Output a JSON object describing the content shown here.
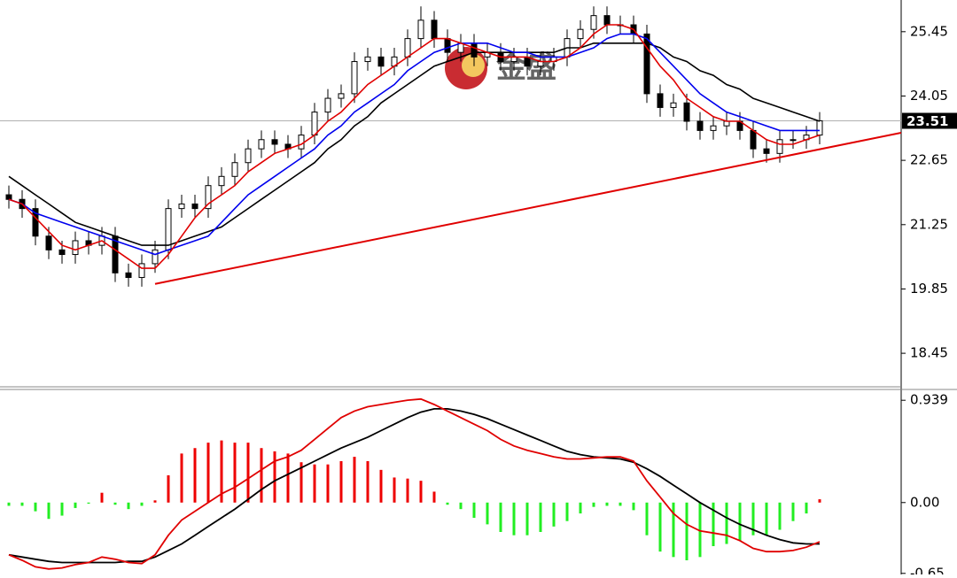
{
  "watermark": "金盛",
  "chart_data": [
    {
      "type": "candlestick",
      "open": [
        21.9,
        21.8,
        21.6,
        21.0,
        20.7,
        20.6,
        20.9,
        20.8,
        21.0,
        20.2,
        20.1,
        20.4,
        20.7,
        21.6,
        21.7,
        21.6,
        22.1,
        22.3,
        22.6,
        22.9,
        23.1,
        23.0,
        22.9,
        23.2,
        23.7,
        24.0,
        24.1,
        24.8,
        24.9,
        24.7,
        24.9,
        25.3,
        25.7,
        25.3,
        25.0,
        25.2,
        24.9,
        25.0,
        24.8,
        24.9,
        24.7,
        24.8,
        24.9,
        25.3,
        25.5,
        25.8,
        25.6,
        25.6,
        25.4,
        24.1,
        23.8,
        23.9,
        23.5,
        23.3,
        23.4,
        23.5,
        23.3,
        22.9,
        22.8,
        23.1,
        23.1,
        23.2
      ],
      "high": [
        22.1,
        22.0,
        21.8,
        21.2,
        20.9,
        21.1,
        21.1,
        21.2,
        21.2,
        20.4,
        20.6,
        20.9,
        21.8,
        21.9,
        21.9,
        22.3,
        22.5,
        22.8,
        23.1,
        23.3,
        23.3,
        23.2,
        23.4,
        23.9,
        24.2,
        24.3,
        25.0,
        25.1,
        25.1,
        25.1,
        25.5,
        26.0,
        25.9,
        25.5,
        25.4,
        25.4,
        25.2,
        25.2,
        25.1,
        25.1,
        25.0,
        25.1,
        25.5,
        25.7,
        26.0,
        26.0,
        25.8,
        25.8,
        25.6,
        24.3,
        24.1,
        24.1,
        23.7,
        23.6,
        23.7,
        23.7,
        23.5,
        23.1,
        23.3,
        23.3,
        23.4,
        23.7
      ],
      "low": [
        21.6,
        21.4,
        20.8,
        20.5,
        20.4,
        20.4,
        20.6,
        20.6,
        20.0,
        19.9,
        19.9,
        20.2,
        20.5,
        21.4,
        21.4,
        21.4,
        21.9,
        22.1,
        22.4,
        22.7,
        22.8,
        22.7,
        22.7,
        23.0,
        23.5,
        23.8,
        23.9,
        24.6,
        24.5,
        24.5,
        24.7,
        25.1,
        25.1,
        24.8,
        24.8,
        24.7,
        24.7,
        24.6,
        24.6,
        24.5,
        24.5,
        24.6,
        24.7,
        25.1,
        25.3,
        25.4,
        25.4,
        25.2,
        23.9,
        23.6,
        23.6,
        23.3,
        23.1,
        23.1,
        23.2,
        23.1,
        22.7,
        22.6,
        22.6,
        22.9,
        22.9,
        23.0
      ],
      "close": [
        21.8,
        21.6,
        21.0,
        20.7,
        20.6,
        20.9,
        20.8,
        21.0,
        20.2,
        20.1,
        20.4,
        20.7,
        21.6,
        21.7,
        21.6,
        22.1,
        22.3,
        22.6,
        22.9,
        23.1,
        23.0,
        22.9,
        23.2,
        23.7,
        24.0,
        24.1,
        24.8,
        24.9,
        24.7,
        24.9,
        25.3,
        25.7,
        25.3,
        25.0,
        25.2,
        24.9,
        25.0,
        24.8,
        24.9,
        24.7,
        24.8,
        24.9,
        25.3,
        25.5,
        25.8,
        25.6,
        25.6,
        25.4,
        24.1,
        23.8,
        23.9,
        23.5,
        23.3,
        23.4,
        23.5,
        23.3,
        22.9,
        22.8,
        23.1,
        23.1,
        23.2,
        23.51
      ],
      "up_color": "#ffffff",
      "down_color": "#000000",
      "series": [
        {
          "color": "#000000",
          "values": [
            22.3,
            22.1,
            21.9,
            21.7,
            21.5,
            21.3,
            21.2,
            21.1,
            21.0,
            20.9,
            20.8,
            20.8,
            20.8,
            20.9,
            21.0,
            21.1,
            21.2,
            21.4,
            21.6,
            21.8,
            22.0,
            22.2,
            22.4,
            22.6,
            22.9,
            23.1,
            23.4,
            23.6,
            23.9,
            24.1,
            24.3,
            24.5,
            24.7,
            24.8,
            24.9,
            25.0,
            25.0,
            25.0,
            25.0,
            25.0,
            25.0,
            25.0,
            25.1,
            25.1,
            25.2,
            25.2,
            25.2,
            25.2,
            25.2,
            25.1,
            24.9,
            24.8,
            24.6,
            24.5,
            24.3,
            24.2,
            24.0,
            23.9,
            23.8,
            23.7,
            23.6,
            23.5
          ]
        },
        {
          "color": "#0000ee",
          "values": [
            21.8,
            21.7,
            21.5,
            21.4,
            21.3,
            21.2,
            21.1,
            21.0,
            20.9,
            20.8,
            20.7,
            20.6,
            20.7,
            20.8,
            20.9,
            21.0,
            21.3,
            21.6,
            21.9,
            22.1,
            22.3,
            22.5,
            22.7,
            22.9,
            23.2,
            23.4,
            23.7,
            23.9,
            24.1,
            24.3,
            24.6,
            24.8,
            25.0,
            25.1,
            25.2,
            25.2,
            25.2,
            25.1,
            25.0,
            25.0,
            24.9,
            24.9,
            24.9,
            25.0,
            25.1,
            25.3,
            25.4,
            25.4,
            25.3,
            25.0,
            24.7,
            24.4,
            24.1,
            23.9,
            23.7,
            23.6,
            23.5,
            23.4,
            23.3,
            23.3,
            23.3,
            23.3
          ]
        },
        {
          "color": "#e00000",
          "values": [
            21.8,
            21.7,
            21.4,
            21.1,
            20.8,
            20.7,
            20.8,
            20.9,
            20.7,
            20.5,
            20.3,
            20.3,
            20.6,
            21.0,
            21.4,
            21.7,
            21.9,
            22.1,
            22.4,
            22.6,
            22.8,
            22.9,
            23.0,
            23.2,
            23.5,
            23.7,
            24.0,
            24.3,
            24.5,
            24.7,
            24.9,
            25.1,
            25.3,
            25.3,
            25.2,
            25.1,
            25.0,
            24.9,
            24.9,
            24.9,
            24.8,
            24.8,
            24.9,
            25.1,
            25.4,
            25.6,
            25.6,
            25.5,
            25.1,
            24.7,
            24.4,
            24.0,
            23.8,
            23.6,
            23.5,
            23.5,
            23.3,
            23.1,
            23.0,
            23.0,
            23.1,
            23.2
          ]
        }
      ],
      "trendline": {
        "color": "#e00000",
        "x": [
          11,
          67.13
        ],
        "values": [
          19.96,
          23.25
        ]
      },
      "last_price": 23.51,
      "ylim": [
        17.72,
        26.14
      ],
      "yticks": [
        25.45,
        24.05,
        22.65,
        21.25,
        19.85,
        18.45
      ]
    },
    {
      "type": "macd",
      "histogram": {
        "positive_color": "#ee0000",
        "negative_color": "#22ee22",
        "values": [
          -0.03,
          -0.03,
          -0.08,
          -0.15,
          -0.12,
          -0.05,
          -0.01,
          0.09,
          -0.02,
          -0.06,
          -0.03,
          0.02,
          0.25,
          0.45,
          0.5,
          0.55,
          0.57,
          0.55,
          0.55,
          0.5,
          0.47,
          0.45,
          0.37,
          0.35,
          0.35,
          0.38,
          0.42,
          0.38,
          0.3,
          0.23,
          0.22,
          0.2,
          0.1,
          -0.02,
          -0.06,
          -0.14,
          -0.2,
          -0.27,
          -0.3,
          -0.3,
          -0.27,
          -0.22,
          -0.17,
          -0.1,
          -0.04,
          -0.03,
          -0.03,
          -0.07,
          -0.3,
          -0.45,
          -0.5,
          -0.53,
          -0.5,
          -0.4,
          -0.38,
          -0.35,
          -0.3,
          -0.3,
          -0.25,
          -0.17,
          -0.1,
          0.03
        ]
      },
      "series": [
        {
          "color": "#000000",
          "values": [
            -0.48,
            -0.5,
            -0.52,
            -0.54,
            -0.55,
            -0.55,
            -0.55,
            -0.55,
            -0.55,
            -0.54,
            -0.54,
            -0.5,
            -0.44,
            -0.38,
            -0.3,
            -0.22,
            -0.14,
            -0.06,
            0.03,
            0.12,
            0.2,
            0.26,
            0.32,
            0.38,
            0.44,
            0.5,
            0.55,
            0.6,
            0.66,
            0.72,
            0.78,
            0.83,
            0.86,
            0.86,
            0.84,
            0.81,
            0.77,
            0.72,
            0.67,
            0.62,
            0.57,
            0.52,
            0.47,
            0.44,
            0.42,
            0.41,
            0.4,
            0.37,
            0.31,
            0.24,
            0.16,
            0.08,
            0.0,
            -0.07,
            -0.14,
            -0.2,
            -0.25,
            -0.3,
            -0.34,
            -0.37,
            -0.38,
            -0.38
          ]
        },
        {
          "color": "#e00000",
          "values": [
            -0.48,
            -0.53,
            -0.59,
            -0.61,
            -0.6,
            -0.57,
            -0.55,
            -0.5,
            -0.52,
            -0.55,
            -0.56,
            -0.48,
            -0.3,
            -0.16,
            -0.08,
            0.0,
            0.08,
            0.14,
            0.22,
            0.3,
            0.38,
            0.42,
            0.48,
            0.58,
            0.68,
            0.78,
            0.84,
            0.88,
            0.9,
            0.92,
            0.94,
            0.95,
            0.9,
            0.84,
            0.78,
            0.72,
            0.66,
            0.58,
            0.52,
            0.48,
            0.45,
            0.42,
            0.4,
            0.4,
            0.41,
            0.42,
            0.42,
            0.38,
            0.2,
            0.05,
            -0.1,
            -0.2,
            -0.26,
            -0.28,
            -0.3,
            -0.35,
            -0.42,
            -0.45,
            -0.45,
            -0.44,
            -0.41,
            -0.36
          ]
        }
      ],
      "ylim": [
        -0.66,
        1.03
      ],
      "yticks": [
        0.939,
        {
          "value": 0,
          "label": "0.00"
        },
        -0.65
      ]
    }
  ]
}
